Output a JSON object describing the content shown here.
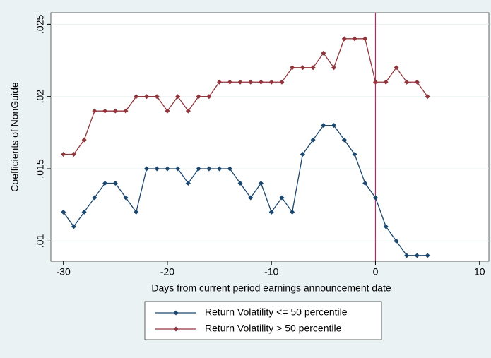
{
  "chart_data": {
    "type": "line",
    "y_label": "Coefficients of NonGuide",
    "x_label": "Days from current period earnings announcement date",
    "x": [
      -30,
      -29,
      -28,
      -27,
      -26,
      -25,
      -24,
      -23,
      -22,
      -21,
      -20,
      -19,
      -18,
      -17,
      -16,
      -15,
      -14,
      -13,
      -12,
      -11,
      -10,
      -9,
      -8,
      -7,
      -6,
      -5,
      -4,
      -3,
      -2,
      -1,
      0,
      1,
      2,
      3,
      4,
      5
    ],
    "series": [
      {
        "name": "Return Volatility <= 50 percentile",
        "color": "#1a476f",
        "values": [
          0.012,
          0.011,
          0.012,
          0.013,
          0.014,
          0.014,
          0.013,
          0.012,
          0.015,
          0.015,
          0.015,
          0.015,
          0.014,
          0.015,
          0.015,
          0.015,
          0.015,
          0.014,
          0.013,
          0.014,
          0.012,
          0.013,
          0.012,
          0.016,
          0.017,
          0.018,
          0.018,
          0.017,
          0.016,
          0.014,
          0.013,
          0.011,
          0.01,
          0.009,
          0.009,
          0.009
        ]
      },
      {
        "name": "Return Volatility > 50 percentile",
        "color": "#90353b",
        "values": [
          0.016,
          0.016,
          0.017,
          0.019,
          0.019,
          0.019,
          0.019,
          0.02,
          0.02,
          0.02,
          0.019,
          0.02,
          0.019,
          0.02,
          0.02,
          0.021,
          0.021,
          0.021,
          0.021,
          0.021,
          0.021,
          0.021,
          0.022,
          0.022,
          0.022,
          0.023,
          0.022,
          0.024,
          0.024,
          0.024,
          0.021,
          0.021,
          0.022,
          0.021,
          0.021,
          0.02
        ]
      }
    ],
    "xlim": [
      -31.2,
      10.9
    ],
    "ylim": [
      0.0086,
      0.0258
    ],
    "xticks": [
      -30,
      -20,
      -10,
      0,
      10
    ],
    "yticks": [
      {
        "value": 0.01,
        "label": ".01"
      },
      {
        "value": 0.015,
        "label": ".015"
      },
      {
        "value": 0.02,
        "label": ".02"
      },
      {
        "value": 0.025,
        "label": ".025"
      }
    ],
    "grid": true,
    "reference_line": {
      "x": 0,
      "color": "#a8306a"
    },
    "legend": "bottom"
  }
}
